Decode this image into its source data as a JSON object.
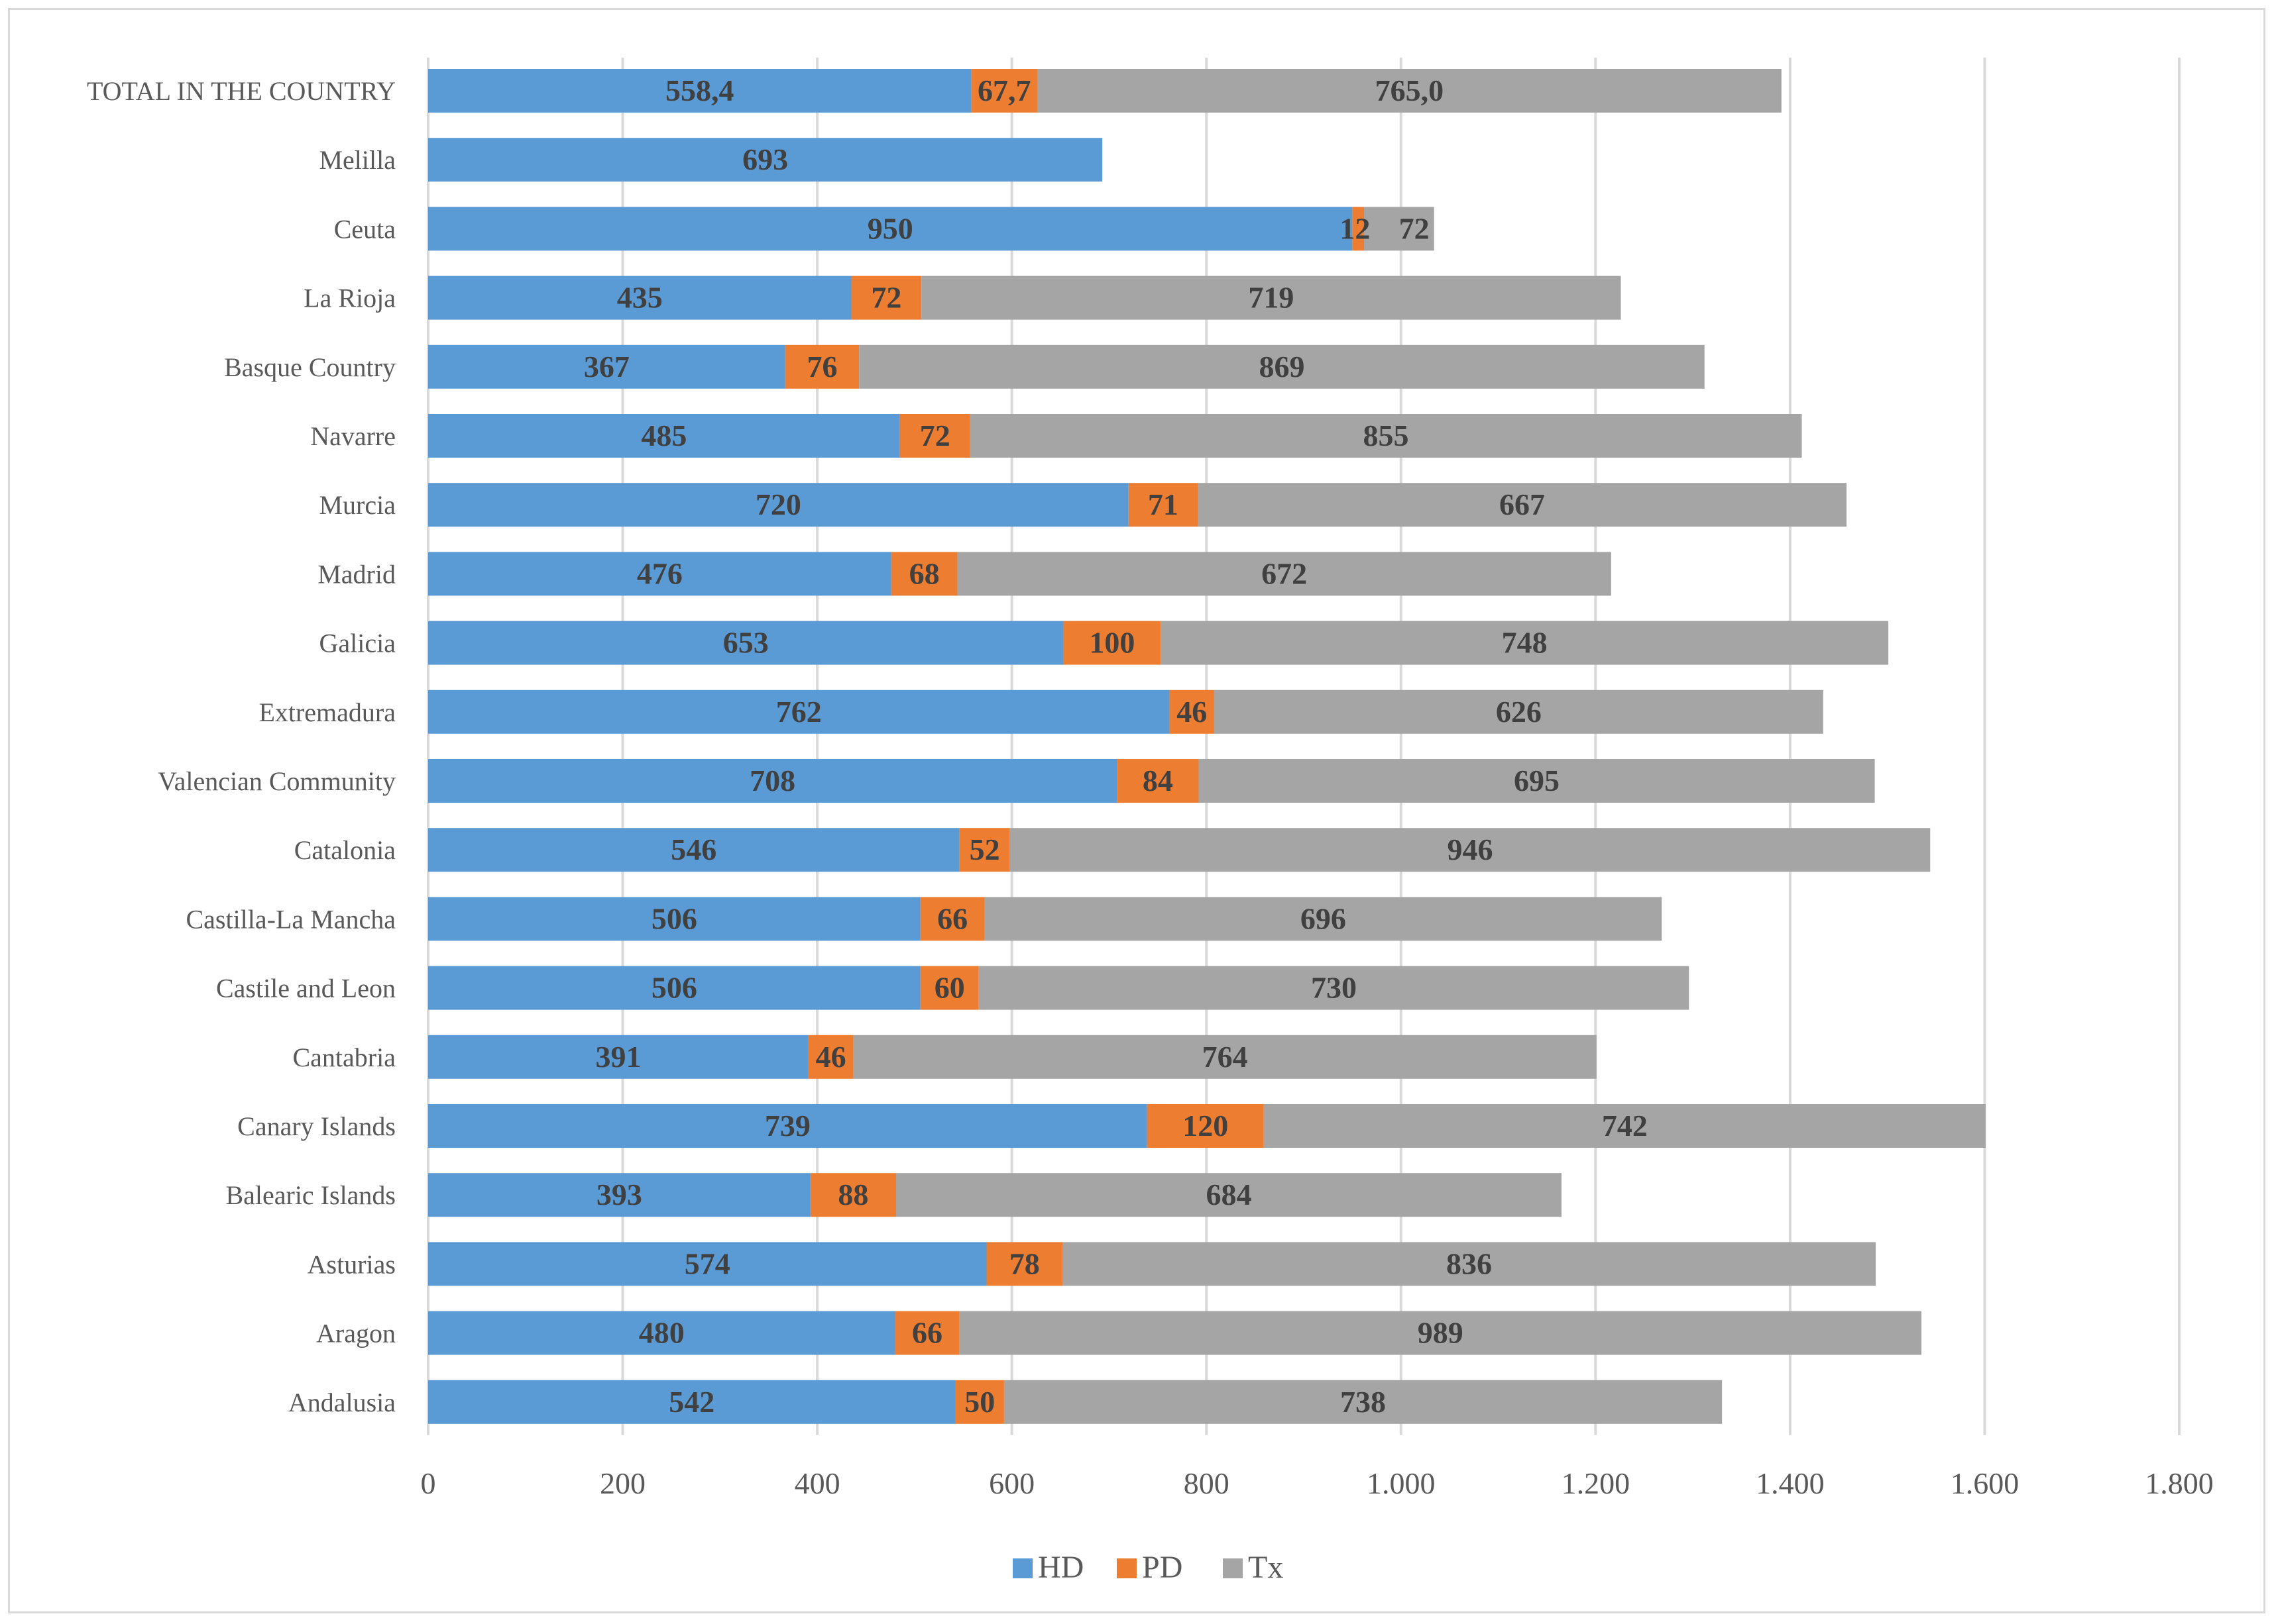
{
  "chart_data": {
    "type": "bar",
    "orientation": "horizontal",
    "stacked": true,
    "title": "",
    "xlabel": "",
    "ylabel": "",
    "xlim": [
      0,
      1800
    ],
    "x_ticks": [
      0,
      200,
      400,
      600,
      800,
      1000,
      1200,
      1400,
      1600,
      1800
    ],
    "x_tick_labels": [
      "0",
      "200",
      "400",
      "600",
      "800",
      "1.000",
      "1.200",
      "1.400",
      "1.600",
      "1.800"
    ],
    "grid": "vertical",
    "legend_position": "bottom",
    "categories": [
      "TOTAL IN THE COUNTRY",
      "Melilla",
      "Ceuta",
      "La Rioja",
      "Basque Country",
      "Navarre",
      "Murcia",
      "Madrid",
      "Galicia",
      "Extremadura",
      "Valencian Community",
      "Catalonia",
      "Castilla-La Mancha",
      "Castile and Leon",
      "Cantabria",
      "Canary Islands",
      "Balearic Islands",
      "Asturias",
      "Aragon",
      "Andalusia"
    ],
    "series": [
      {
        "name": "HD",
        "color": "#5b9bd5",
        "values": [
          558.4,
          693,
          950,
          435,
          367,
          485,
          720,
          476,
          653,
          762,
          708,
          546,
          506,
          506,
          391,
          739,
          393,
          574,
          480,
          542
        ],
        "labels": [
          "558,4",
          "693",
          "950",
          "435",
          "367",
          "485",
          "720",
          "476",
          "653",
          "762",
          "708",
          "546",
          "506",
          "506",
          "391",
          "739",
          "393",
          "574",
          "480",
          "542"
        ]
      },
      {
        "name": "PD",
        "color": "#ed7d31",
        "values": [
          67.7,
          0,
          12,
          72,
          76,
          72,
          71,
          68,
          100,
          46,
          84,
          52,
          66,
          60,
          46,
          120,
          88,
          78,
          66,
          50
        ],
        "labels": [
          "67,7",
          "",
          "12",
          "72",
          "76",
          "72",
          "71",
          "68",
          "100",
          "46",
          "84",
          "52",
          "66",
          "60",
          "46",
          "120",
          "88",
          "78",
          "66",
          "50"
        ]
      },
      {
        "name": "Tx",
        "color": "#a5a5a5",
        "values": [
          765.0,
          0,
          72,
          719,
          869,
          855,
          667,
          672,
          748,
          626,
          695,
          946,
          696,
          730,
          764,
          742,
          684,
          836,
          989,
          738
        ],
        "labels": [
          "765,0",
          "",
          "72",
          "719",
          "869",
          "855",
          "667",
          "672",
          "748",
          "626",
          "695",
          "946",
          "696",
          "730",
          "764",
          "742",
          "684",
          "836",
          "989",
          "738"
        ]
      }
    ]
  }
}
